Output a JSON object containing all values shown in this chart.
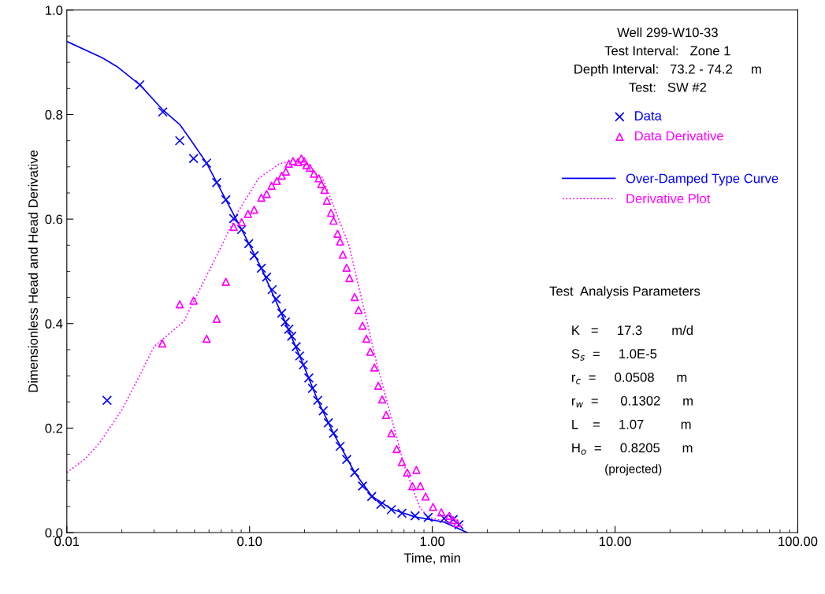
{
  "chart_data": {
    "type": "scatter",
    "xlabel": "Time, min",
    "ylabel": "Dimensionless Head and Head Derivative",
    "log": "x",
    "xlim": [
      0.01,
      100
    ],
    "ylim": [
      0,
      1.0
    ],
    "xticks": [
      {
        "value": 0.01,
        "label": "0.01"
      },
      {
        "value": 0.1,
        "label": "0.10"
      },
      {
        "value": 1,
        "label": "1.00"
      },
      {
        "value": 10,
        "label": "10.00"
      },
      {
        "value": 100,
        "label": "100.00"
      }
    ],
    "yticks": [
      {
        "value": 0,
        "label": "0.0"
      },
      {
        "value": 0.2,
        "label": "0.2"
      },
      {
        "value": 0.4,
        "label": "0.4"
      },
      {
        "value": 0.6,
        "label": "0.6"
      },
      {
        "value": 0.8,
        "label": "0.8"
      },
      {
        "value": 1.0,
        "label": "1.0"
      }
    ],
    "grid": false,
    "legend": "top right",
    "series": [
      {
        "name": "Data",
        "marker": "cross",
        "color": "#0000ff",
        "x": [
          0.0166,
          0.0251,
          0.0335,
          0.0415,
          0.0494,
          0.0582,
          0.0661,
          0.0742,
          0.0819,
          0.0905,
          0.099,
          0.106,
          0.116,
          0.124,
          0.133,
          0.14,
          0.15,
          0.157,
          0.164,
          0.17,
          0.18,
          0.188,
          0.197,
          0.211,
          0.221,
          0.236,
          0.253,
          0.27,
          0.288,
          0.313,
          0.34,
          0.376,
          0.415,
          0.466,
          0.523,
          0.597,
          0.682,
          0.805,
          0.95,
          1.16,
          1.3,
          1.4
        ],
        "values": [
          0.253,
          0.857,
          0.805,
          0.75,
          0.716,
          0.707,
          0.67,
          0.637,
          0.601,
          0.58,
          0.553,
          0.53,
          0.506,
          0.489,
          0.465,
          0.447,
          0.42,
          0.403,
          0.389,
          0.376,
          0.356,
          0.338,
          0.321,
          0.296,
          0.276,
          0.253,
          0.233,
          0.21,
          0.19,
          0.165,
          0.14,
          0.115,
          0.089,
          0.069,
          0.054,
          0.044,
          0.037,
          0.032,
          0.029,
          0.027,
          0.025,
          0.015
        ]
      },
      {
        "name": "Data Derivative",
        "marker": "triangle",
        "color": "#ff00ff",
        "x": [
          0.0333,
          0.0415,
          0.0494,
          0.0582,
          0.0661,
          0.0742,
          0.0819,
          0.0905,
          0.098,
          0.106,
          0.116,
          0.124,
          0.132,
          0.141,
          0.15,
          0.158,
          0.164,
          0.173,
          0.184,
          0.192,
          0.199,
          0.205,
          0.214,
          0.225,
          0.239,
          0.247,
          0.257,
          0.265,
          0.279,
          0.288,
          0.303,
          0.313,
          0.324,
          0.34,
          0.352,
          0.376,
          0.395,
          0.415,
          0.436,
          0.458,
          0.482,
          0.506,
          0.532,
          0.559,
          0.597,
          0.638,
          0.682,
          0.729,
          0.778,
          0.818,
          0.86,
          0.919,
          1.01,
          1.12,
          1.24,
          1.3,
          1.37
        ],
        "values": [
          0.362,
          0.437,
          0.444,
          0.371,
          0.409,
          0.48,
          0.585,
          0.594,
          0.61,
          0.618,
          0.641,
          0.648,
          0.664,
          0.673,
          0.683,
          0.691,
          0.706,
          0.711,
          0.709,
          0.716,
          0.711,
          0.703,
          0.698,
          0.687,
          0.678,
          0.667,
          0.656,
          0.635,
          0.612,
          0.597,
          0.572,
          0.557,
          0.532,
          0.507,
          0.487,
          0.451,
          0.426,
          0.396,
          0.371,
          0.346,
          0.316,
          0.281,
          0.255,
          0.225,
          0.19,
          0.16,
          0.135,
          0.115,
          0.089,
          0.12,
          0.089,
          0.069,
          0.049,
          0.039,
          0.032,
          0.024,
          0.018
        ]
      },
      {
        "name": "Over-Damped Type Curve",
        "type": "line",
        "marker": "none",
        "line_style": "solid",
        "color": "#0000ff",
        "x": [
          0.01,
          0.0156,
          0.0188,
          0.0251,
          0.0335,
          0.0415,
          0.0467,
          0.058,
          0.0742,
          0.0905,
          0.116,
          0.157,
          0.197,
          0.236,
          0.288,
          0.376,
          0.466,
          0.597,
          0.805,
          1.16,
          1.55
        ],
        "values": [
          0.94,
          0.909,
          0.892,
          0.857,
          0.809,
          0.781,
          0.756,
          0.708,
          0.637,
          0.58,
          0.506,
          0.402,
          0.321,
          0.253,
          0.19,
          0.115,
          0.07,
          0.045,
          0.03,
          0.02,
          0.0
        ]
      },
      {
        "name": "Derivative Plot",
        "type": "line",
        "marker": "none",
        "line_style": "dotted",
        "color": "#ff00ff",
        "x": [
          0.01,
          0.0125,
          0.015,
          0.02,
          0.025,
          0.03,
          0.0436,
          0.056,
          0.0629,
          0.0717,
          0.0861,
          0.112,
          0.146,
          0.175,
          0.25,
          0.35,
          0.5,
          0.7,
          0.85,
          0.947,
          1.48
        ],
        "values": [
          0.115,
          0.14,
          0.17,
          0.235,
          0.3,
          0.356,
          0.404,
          0.48,
          0.515,
          0.555,
          0.613,
          0.678,
          0.706,
          0.712,
          0.68,
          0.55,
          0.32,
          0.13,
          0.05,
          0.029,
          0.014
        ]
      }
    ],
    "annotations": [
      "Well 299-W10-33",
      "Test Interval:   Zone 1",
      "Depth Interval:   73.2 - 74.2     m",
      "Test:   SW #2",
      "Test  Analysis Parameters",
      "K   =     17.3        m/d",
      "S$_{s}$  =     1.0E-5",
      "r$_{c}$  =     0.0508      m",
      "r$_{w}$  =      0.1302      m",
      "L    =     1.07          m",
      "H$_{o}$  =     0.8205      m",
      "(projected)"
    ]
  }
}
